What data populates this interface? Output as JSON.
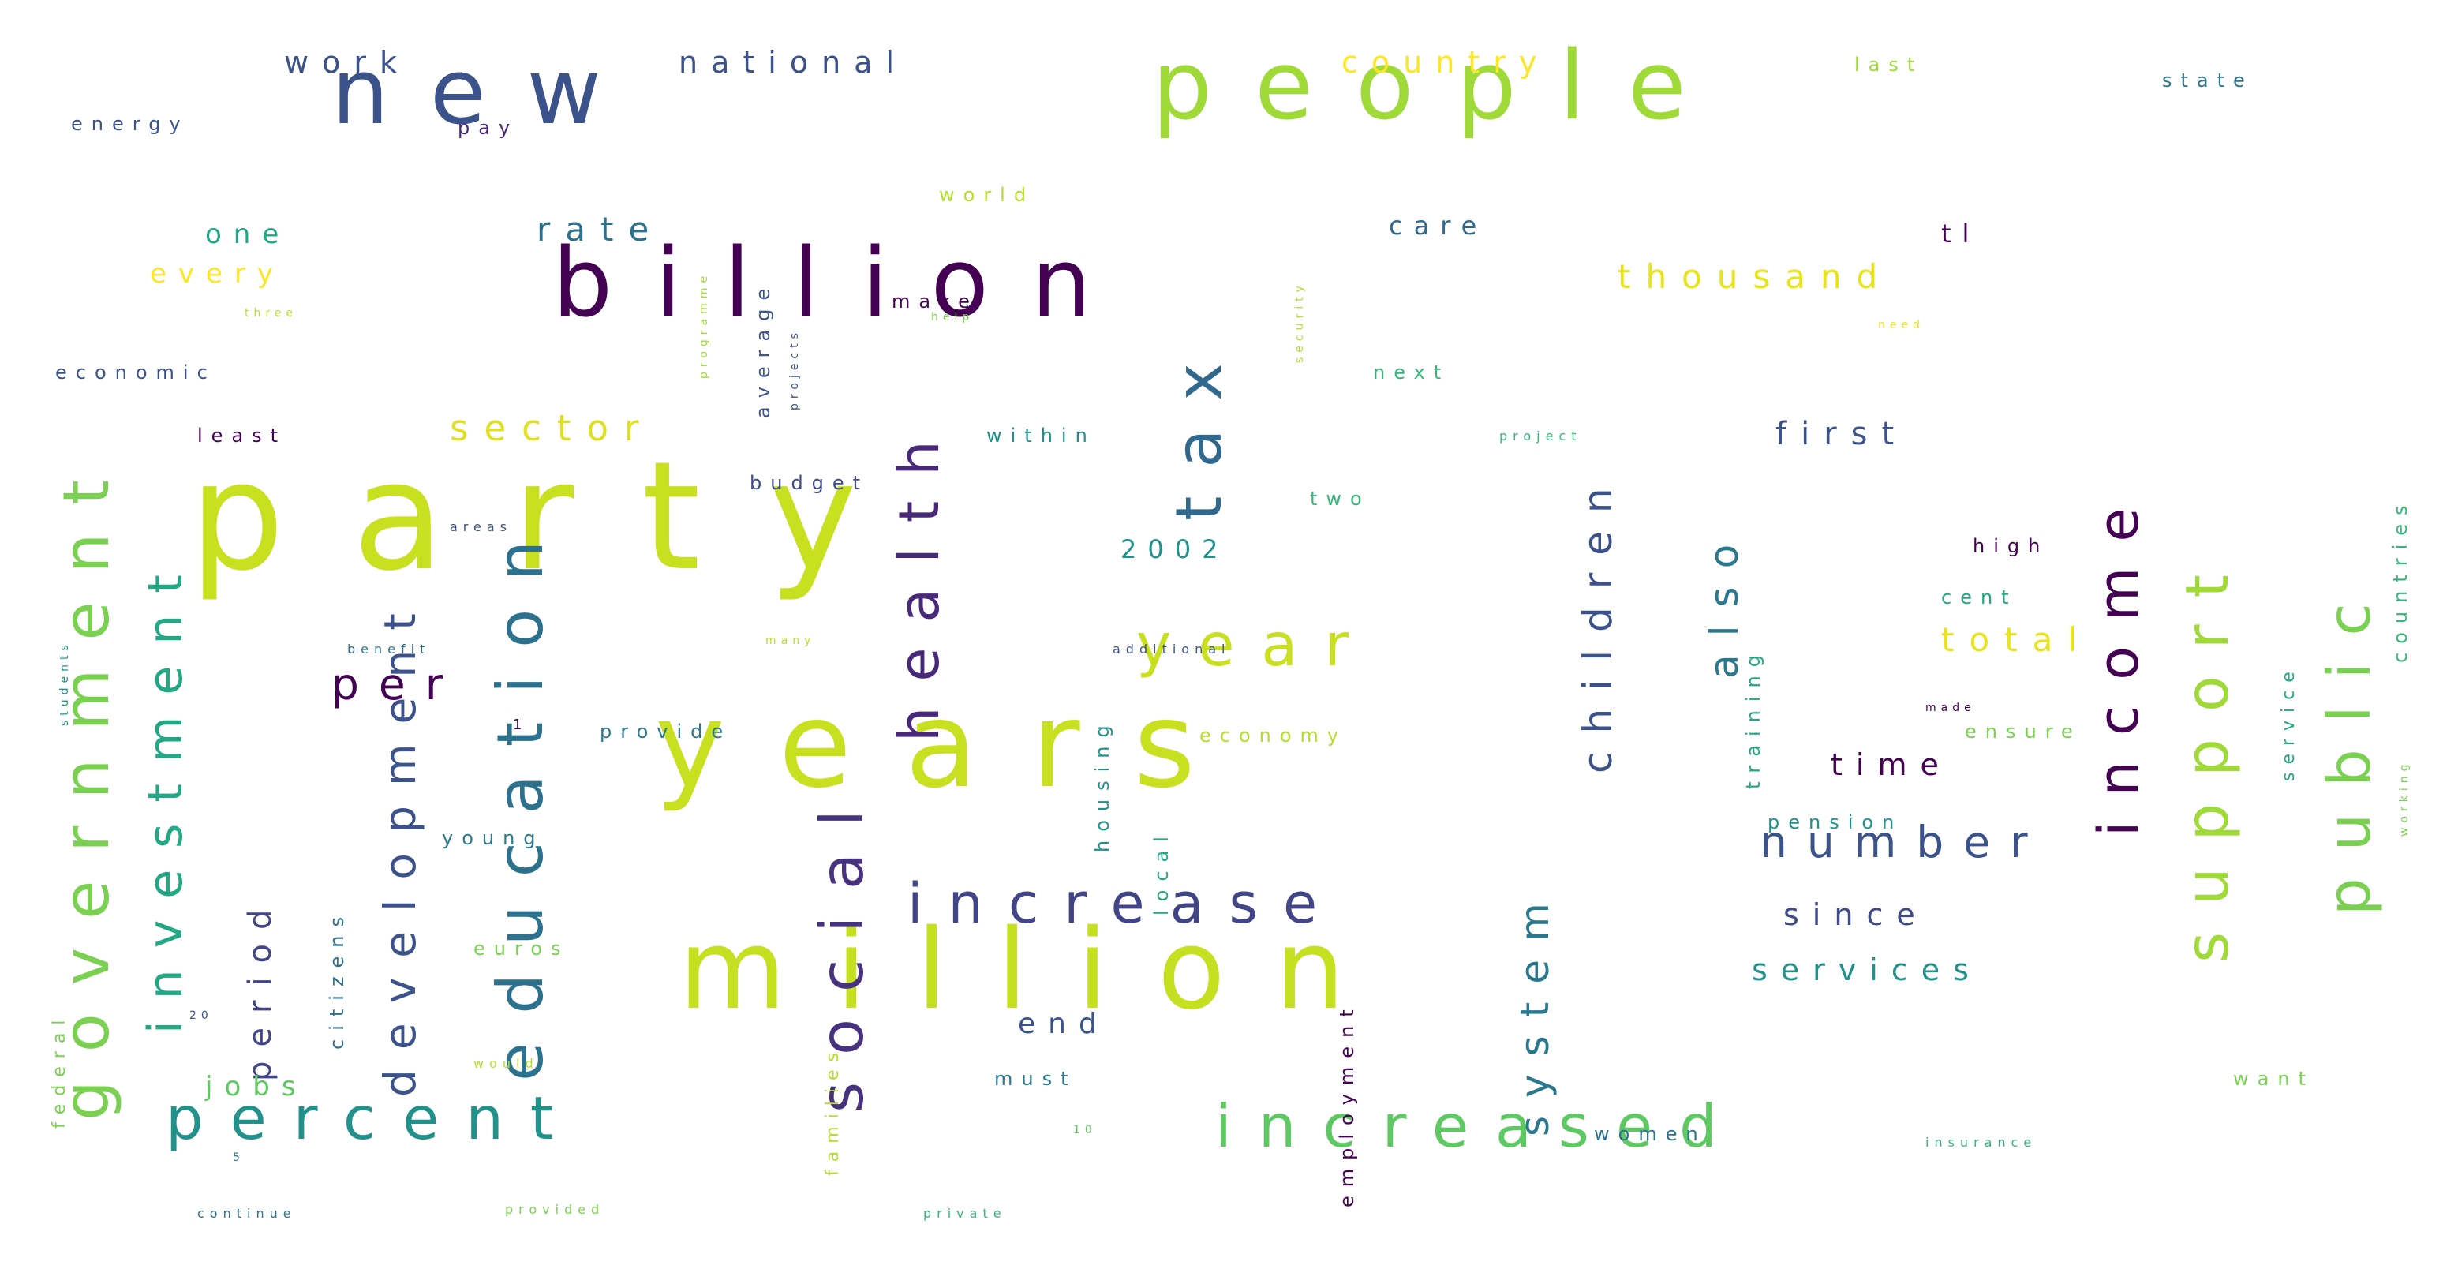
{
  "words": [
    {
      "text": "party",
      "color": "#c8e020",
      "size": 190,
      "orientation": "horizontal"
    },
    {
      "text": "years",
      "color": "#c8e020",
      "size": 150,
      "orientation": "horizontal"
    },
    {
      "text": "million",
      "color": "#c5e021",
      "size": 140,
      "orientation": "horizontal"
    },
    {
      "text": "people",
      "color": "#a0da39",
      "size": 120,
      "orientation": "horizontal"
    },
    {
      "text": "billion",
      "color": "#440154",
      "size": 120,
      "orientation": "horizontal"
    },
    {
      "text": "new",
      "color": "#3b528b",
      "size": 115,
      "orientation": "horizontal"
    },
    {
      "text": "year",
      "color": "#c8e020",
      "size": 75,
      "orientation": "horizontal"
    },
    {
      "text": "increased",
      "color": "#5ec962",
      "size": 75,
      "orientation": "horizontal"
    },
    {
      "text": "percent",
      "color": "#21918c",
      "size": 75,
      "orientation": "horizontal"
    },
    {
      "text": "increase",
      "color": "#414487",
      "size": 70,
      "orientation": "horizontal"
    },
    {
      "text": "government",
      "color": "#7ad151",
      "size": 80,
      "orientation": "vertical"
    },
    {
      "text": "education",
      "color": "#2c728e",
      "size": 80,
      "orientation": "vertical"
    },
    {
      "text": "tax",
      "color": "#31688e",
      "size": 80,
      "orientation": "vertical"
    },
    {
      "text": "social",
      "color": "#46327e",
      "size": 75,
      "orientation": "vertical"
    },
    {
      "text": "health",
      "color": "#482878",
      "size": 70,
      "orientation": "vertical"
    },
    {
      "text": "public",
      "color": "#7ad151",
      "size": 75,
      "orientation": "vertical"
    },
    {
      "text": "support",
      "color": "#a0da39",
      "size": 75,
      "orientation": "vertical"
    },
    {
      "text": "income",
      "color": "#440154",
      "size": 70,
      "orientation": "vertical"
    },
    {
      "text": "number",
      "color": "#3b528b",
      "size": 55,
      "orientation": "horizontal"
    },
    {
      "text": "investment",
      "color": "#22a884",
      "size": 60,
      "orientation": "vertical"
    },
    {
      "text": "development",
      "color": "#3b528b",
      "size": 55,
      "orientation": "vertical"
    },
    {
      "text": "per",
      "color": "#440154",
      "size": 55,
      "orientation": "horizontal"
    },
    {
      "text": "system",
      "color": "#2a788e",
      "size": 50,
      "orientation": "vertical"
    },
    {
      "text": "children",
      "color": "#3b528b",
      "size": 50,
      "orientation": "vertical"
    },
    {
      "text": "also",
      "color": "#2a788e",
      "size": 50,
      "orientation": "vertical"
    },
    {
      "text": "sector",
      "color": "#e0e023",
      "size": 45,
      "orientation": "horizontal"
    },
    {
      "text": "thousand",
      "color": "#e8e419",
      "size": 42,
      "orientation": "horizontal"
    },
    {
      "text": "first",
      "color": "#3b528b",
      "size": 40,
      "orientation": "horizontal"
    },
    {
      "text": "total",
      "color": "#e8e419",
      "size": 42,
      "orientation": "horizontal"
    },
    {
      "text": "services",
      "color": "#21918c",
      "size": 38,
      "orientation": "horizontal"
    },
    {
      "text": "since",
      "color": "#3e4a89",
      "size": 38,
      "orientation": "horizontal"
    },
    {
      "text": "time",
      "color": "#440154",
      "size": 38,
      "orientation": "horizontal"
    },
    {
      "text": "rate",
      "color": "#2c728e",
      "size": 42,
      "orientation": "horizontal"
    },
    {
      "text": "country",
      "color": "#fde725",
      "size": 38,
      "orientation": "horizontal"
    },
    {
      "text": "work",
      "color": "#3b528b",
      "size": 38,
      "orientation": "horizontal"
    },
    {
      "text": "national",
      "color": "#3b528b",
      "size": 38,
      "orientation": "horizontal"
    },
    {
      "text": "period",
      "color": "#414487",
      "size": 40,
      "orientation": "vertical"
    },
    {
      "text": "end",
      "color": "#3b528b",
      "size": 36,
      "orientation": "horizontal"
    },
    {
      "text": "jobs",
      "color": "#5ec962",
      "size": 34,
      "orientation": "horizontal"
    },
    {
      "text": "one",
      "color": "#22a884",
      "size": 34,
      "orientation": "horizontal"
    },
    {
      "text": "every",
      "color": "#fde725",
      "size": 34,
      "orientation": "horizontal"
    },
    {
      "text": "care",
      "color": "#31688e",
      "size": 32,
      "orientation": "horizontal"
    },
    {
      "text": "2002",
      "color": "#21918c",
      "size": 32,
      "orientation": "horizontal"
    },
    {
      "text": "tl",
      "color": "#440154",
      "size": 32,
      "orientation": "horizontal"
    },
    {
      "text": "state",
      "color": "#2a788e",
      "size": 24,
      "orientation": "horizontal"
    },
    {
      "text": "last",
      "color": "#a0da39",
      "size": 24,
      "orientation": "horizontal"
    },
    {
      "text": "energy",
      "color": "#3b528b",
      "size": 24,
      "orientation": "horizontal"
    },
    {
      "text": "pay",
      "color": "#482878",
      "size": 24,
      "orientation": "horizontal"
    },
    {
      "text": "world",
      "color": "#b5de2b",
      "size": 24,
      "orientation": "horizontal"
    },
    {
      "text": "make",
      "color": "#440154",
      "size": 24,
      "orientation": "horizontal"
    },
    {
      "text": "economic",
      "color": "#3b528b",
      "size": 24,
      "orientation": "horizontal"
    },
    {
      "text": "least",
      "color": "#440154",
      "size": 24,
      "orientation": "horizontal"
    },
    {
      "text": "budget",
      "color": "#3e4a89",
      "size": 24,
      "orientation": "horizontal"
    },
    {
      "text": "within",
      "color": "#21918c",
      "size": 24,
      "orientation": "horizontal"
    },
    {
      "text": "next",
      "color": "#35b779",
      "size": 24,
      "orientation": "horizontal"
    },
    {
      "text": "two",
      "color": "#35b779",
      "size": 24,
      "orientation": "horizontal"
    },
    {
      "text": "high",
      "color": "#440154",
      "size": 24,
      "orientation": "horizontal"
    },
    {
      "text": "cent",
      "color": "#22a884",
      "size": 24,
      "orientation": "horizontal"
    },
    {
      "text": "ensure",
      "color": "#7ad151",
      "size": 24,
      "orientation": "horizontal"
    },
    {
      "text": "pension",
      "color": "#21918c",
      "size": 24,
      "orientation": "horizontal"
    },
    {
      "text": "young",
      "color": "#2a788e",
      "size": 24,
      "orientation": "horizontal"
    },
    {
      "text": "provide",
      "color": "#2a788e",
      "size": 24,
      "orientation": "horizontal"
    },
    {
      "text": "economy",
      "color": "#b5de2b",
      "size": 24,
      "orientation": "horizontal"
    },
    {
      "text": "euros",
      "color": "#7ad151",
      "size": 24,
      "orientation": "horizontal"
    },
    {
      "text": "must",
      "color": "#2a788e",
      "size": 24,
      "orientation": "horizontal"
    },
    {
      "text": "women",
      "color": "#2c728e",
      "size": 24,
      "orientation": "horizontal"
    },
    {
      "text": "want",
      "color": "#7ad151",
      "size": 24,
      "orientation": "horizontal"
    },
    {
      "text": "areas",
      "color": "#3b528b",
      "size": 16,
      "orientation": "horizontal"
    },
    {
      "text": "benefit",
      "color": "#2c728e",
      "size": 16,
      "orientation": "horizontal"
    },
    {
      "text": "additional",
      "color": "#3b528b",
      "size": 16,
      "orientation": "horizontal"
    },
    {
      "text": "many",
      "color": "#b5de2b",
      "size": 14,
      "orientation": "horizontal"
    },
    {
      "text": "three",
      "color": "#b5de2b",
      "size": 14,
      "orientation": "horizontal"
    },
    {
      "text": "help",
      "color": "#7ad151",
      "size": 14,
      "orientation": "horizontal"
    },
    {
      "text": "need",
      "color": "#e8e419",
      "size": 14,
      "orientation": "horizontal"
    },
    {
      "text": "project",
      "color": "#35b779",
      "size": 16,
      "orientation": "horizontal"
    },
    {
      "text": "made",
      "color": "#440154",
      "size": 14,
      "orientation": "horizontal"
    },
    {
      "text": "insurance",
      "color": "#35b779",
      "size": 16,
      "orientation": "horizontal"
    },
    {
      "text": "continue",
      "color": "#2c728e",
      "size": 16,
      "orientation": "horizontal"
    },
    {
      "text": "provided",
      "color": "#7ad151",
      "size": 16,
      "orientation": "horizontal"
    },
    {
      "text": "private",
      "color": "#35b779",
      "size": 16,
      "orientation": "horizontal"
    },
    {
      "text": "would",
      "color": "#b5de2b",
      "size": 16,
      "orientation": "horizontal"
    },
    {
      "text": "1",
      "color": "#440154",
      "size": 18,
      "orientation": "horizontal"
    },
    {
      "text": "20",
      "color": "#3b528b",
      "size": 14,
      "orientation": "horizontal"
    },
    {
      "text": "5",
      "color": "#2a788e",
      "size": 14,
      "orientation": "horizontal"
    },
    {
      "text": "10",
      "color": "#5ec962",
      "size": 14,
      "orientation": "horizontal"
    },
    {
      "text": "federal",
      "color": "#7ad151",
      "size": 22,
      "orientation": "vertical"
    },
    {
      "text": "students",
      "color": "#21918c",
      "size": 14,
      "orientation": "vertical"
    },
    {
      "text": "citizens",
      "color": "#2c728e",
      "size": 24,
      "orientation": "vertical"
    },
    {
      "text": "families",
      "color": "#b5de2b",
      "size": 22,
      "orientation": "vertical"
    },
    {
      "text": "housing",
      "color": "#21918c",
      "size": 24,
      "orientation": "vertical"
    },
    {
      "text": "local",
      "color": "#22a884",
      "size": 24,
      "orientation": "vertical"
    },
    {
      "text": "employment",
      "color": "#440154",
      "size": 24,
      "orientation": "vertical"
    },
    {
      "text": "training",
      "color": "#22a884",
      "size": 24,
      "orientation": "vertical"
    },
    {
      "text": "service",
      "color": "#22a884",
      "size": 22,
      "orientation": "vertical"
    },
    {
      "text": "countries",
      "color": "#35b779",
      "size": 24,
      "orientation": "vertical"
    },
    {
      "text": "working",
      "color": "#7ad151",
      "size": 14,
      "orientation": "vertical"
    },
    {
      "text": "average",
      "color": "#3b528b",
      "size": 24,
      "orientation": "vertical"
    },
    {
      "text": "projects",
      "color": "#3b528b",
      "size": 14,
      "orientation": "vertical"
    },
    {
      "text": "programme",
      "color": "#a0da39",
      "size": 14,
      "orientation": "vertical"
    },
    {
      "text": "security",
      "color": "#b5de2b",
      "size": 14,
      "orientation": "vertical"
    }
  ]
}
